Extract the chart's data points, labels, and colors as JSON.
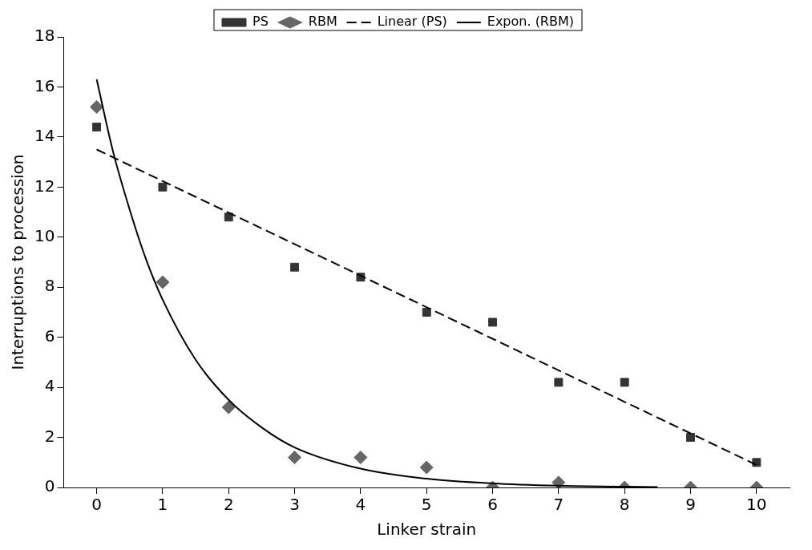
{
  "chart_data": {
    "type": "scatter",
    "xlabel": "Linker strain",
    "ylabel": "Interruptions to procession",
    "x": [
      0,
      1,
      2,
      3,
      4,
      5,
      6,
      7,
      8,
      9,
      10
    ],
    "xlim": [
      -0.5,
      10.5
    ],
    "xticks": [
      0,
      1,
      2,
      3,
      4,
      5,
      6,
      7,
      8,
      9,
      10
    ],
    "ylim": [
      0,
      18
    ],
    "yticks": [
      0,
      2,
      4,
      6,
      8,
      10,
      12,
      14,
      16,
      18
    ],
    "grid": false,
    "legend": "top",
    "series": [
      {
        "name": "PS",
        "marker": "square",
        "color": "#333333",
        "values": [
          14.4,
          12.0,
          10.8,
          8.8,
          8.4,
          7.0,
          6.6,
          4.2,
          4.2,
          2.0,
          1.0
        ]
      },
      {
        "name": "RBM",
        "marker": "diamond",
        "color": "#666666",
        "values": [
          15.2,
          8.2,
          3.2,
          1.2,
          1.2,
          0.8,
          0,
          0.2,
          0,
          0,
          0
        ]
      },
      {
        "name": "Linear (PS)",
        "type": "line",
        "marker": "none",
        "line_style": "dashed",
        "color": "#000000",
        "x": [
          0,
          10
        ],
        "values": [
          13.5,
          0.9
        ]
      },
      {
        "name": "Expon. (RBM)",
        "type": "line",
        "marker": "none",
        "line_style": "solid",
        "color": "#000000",
        "x": [
          0,
          0.25,
          0.5,
          0.75,
          1,
          1.5,
          2,
          2.5,
          3,
          4,
          5,
          6,
          7,
          8,
          8.5
        ],
        "values": [
          16.3,
          13.4,
          11.1,
          9.1,
          7.5,
          5.1,
          3.5,
          2.4,
          1.6,
          0.75,
          0.35,
          0.16,
          0.07,
          0.03,
          0.02
        ]
      }
    ]
  }
}
